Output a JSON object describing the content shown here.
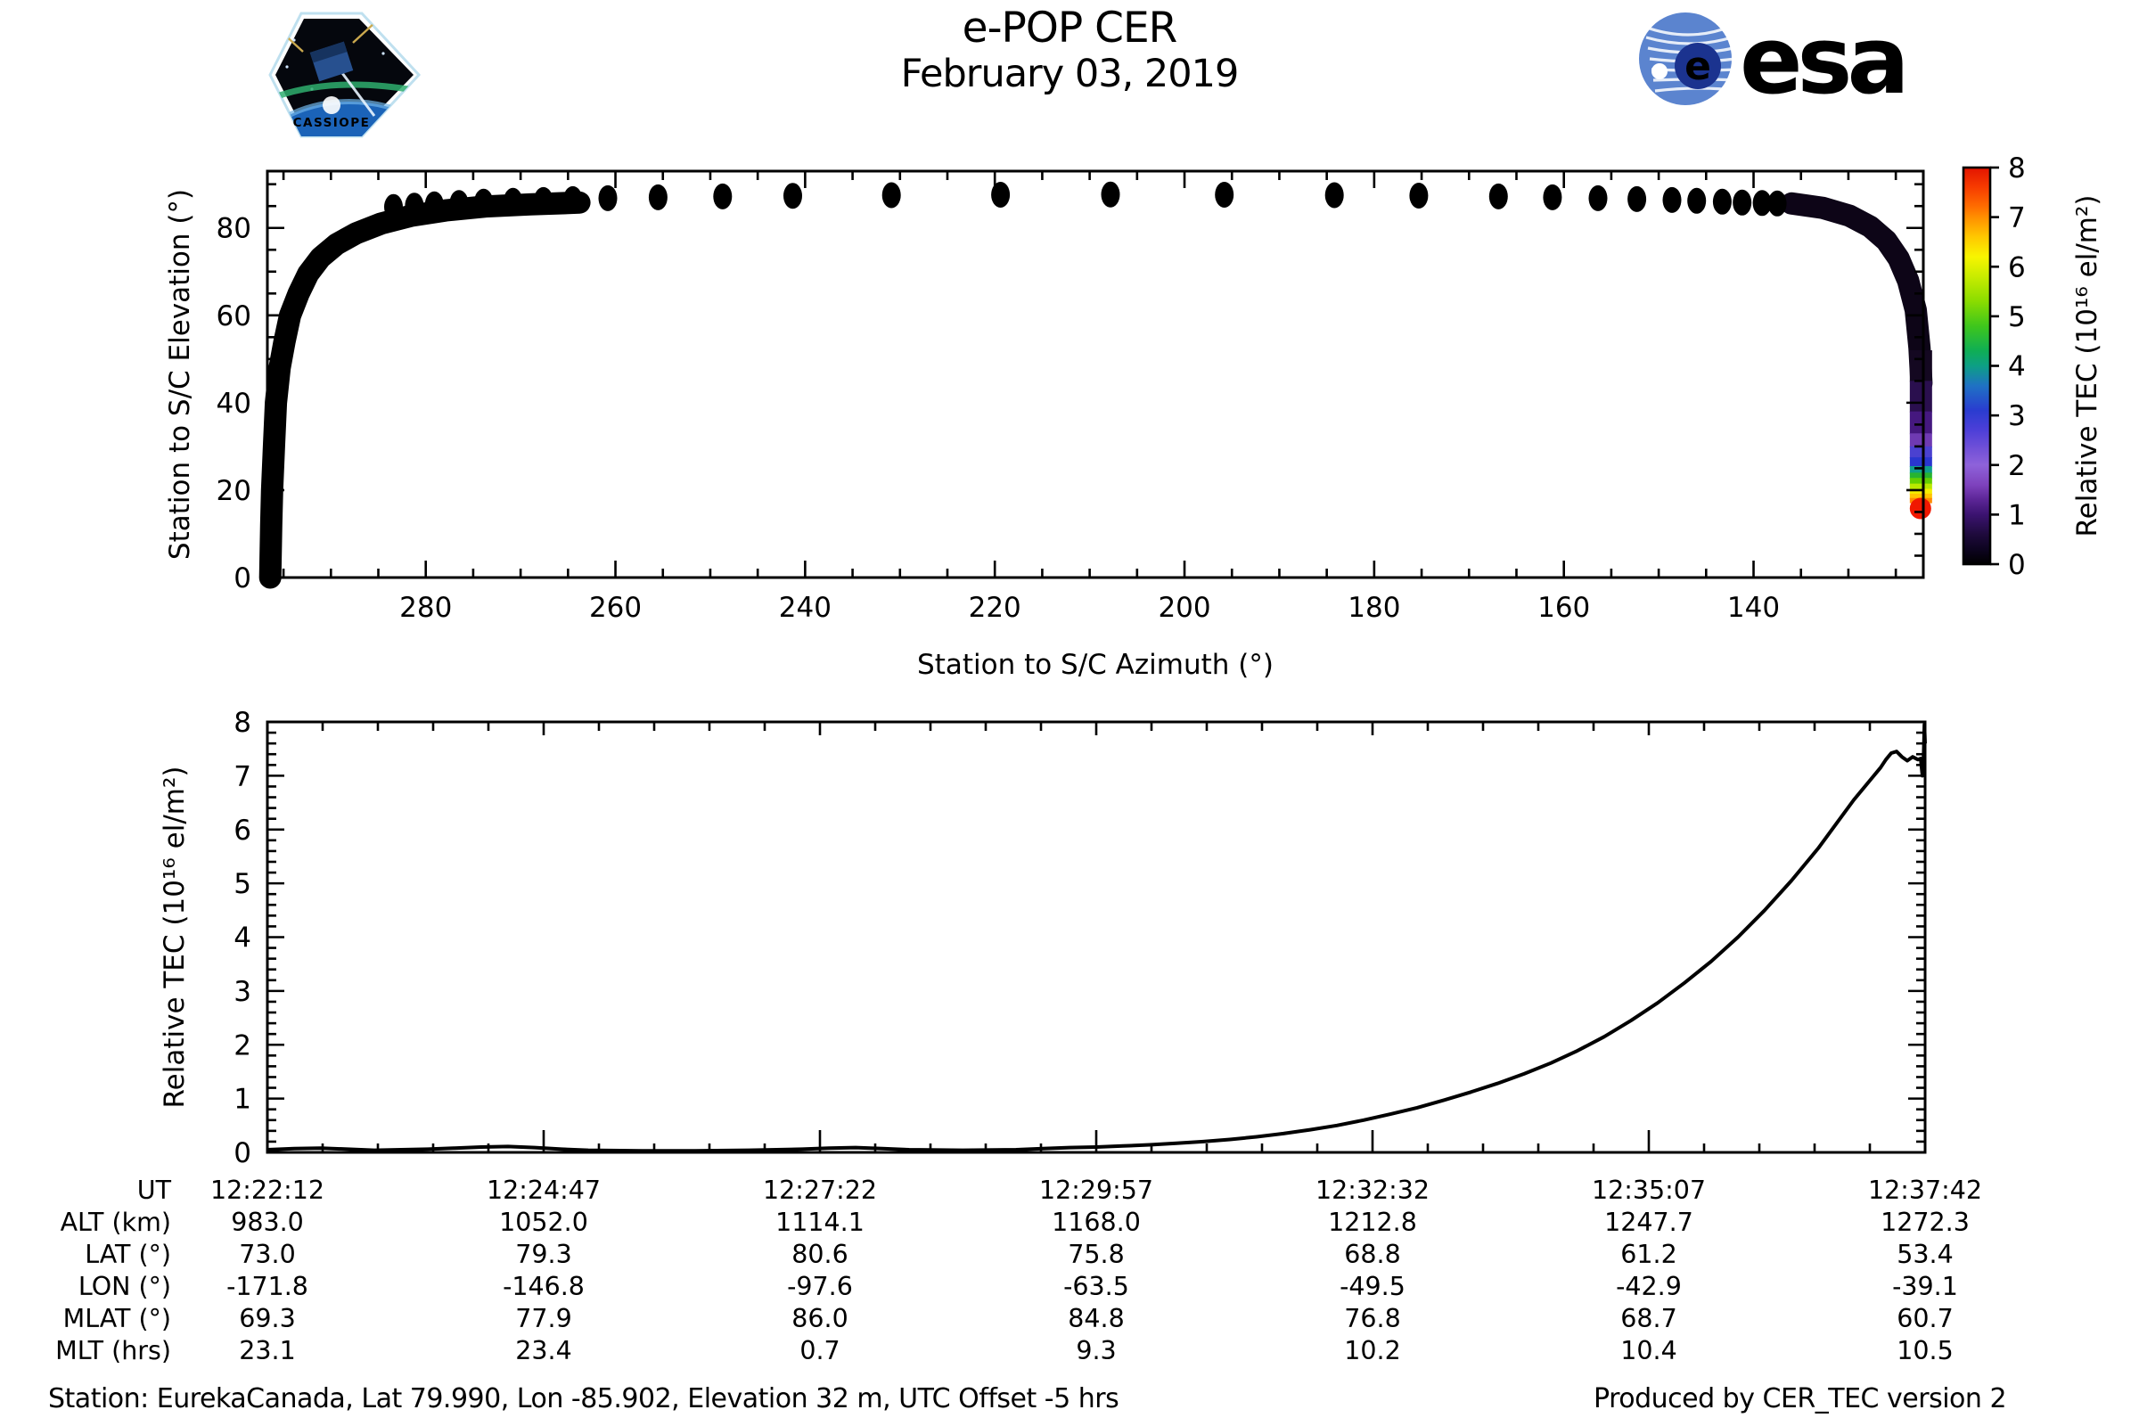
{
  "title": "e-POP CER",
  "subtitle": "February 03, 2019",
  "footer": {
    "left": "Station: EurekaCanada, Lat 79.990, Lon -85.902, Elevation 32 m, UTC Offset -5 hrs",
    "right": "Produced by CER_TEC version 2"
  },
  "logos": {
    "cassiope_text": "CASSIOPE",
    "esa_text": "esa",
    "esa_e": "e",
    "esa_blue": "#1b338f",
    "esa_globe_blue": "#5b84cf",
    "cassiope_cyan": "#3ec6ee"
  },
  "colorbar": {
    "label": "Relative TEC (10¹⁶ el/m²)",
    "min": 0,
    "max": 8,
    "ticks": [
      0,
      1,
      2,
      3,
      4,
      5,
      6,
      7,
      8
    ],
    "stops": [
      {
        "v": 8.0,
        "color": "#e31400"
      },
      {
        "v": 7.6,
        "color": "#f73c00"
      },
      {
        "v": 7.2,
        "color": "#ff6f00"
      },
      {
        "v": 7.0,
        "color": "#ff8f00"
      },
      {
        "v": 6.6,
        "color": "#ffc800"
      },
      {
        "v": 6.2,
        "color": "#f8f500"
      },
      {
        "v": 5.8,
        "color": "#c8ec00"
      },
      {
        "v": 5.3,
        "color": "#8adc00"
      },
      {
        "v": 4.8,
        "color": "#3ec61c"
      },
      {
        "v": 4.3,
        "color": "#0fae55"
      },
      {
        "v": 4.0,
        "color": "#0d9f85"
      },
      {
        "v": 3.6,
        "color": "#1f72c4"
      },
      {
        "v": 3.1,
        "color": "#2a3cd0"
      },
      {
        "v": 2.7,
        "color": "#4d3fd8"
      },
      {
        "v": 2.3,
        "color": "#7452d8"
      },
      {
        "v": 2.0,
        "color": "#8e62da"
      },
      {
        "v": 1.6,
        "color": "#7e42bd"
      },
      {
        "v": 1.3,
        "color": "#5c2596"
      },
      {
        "v": 1.0,
        "color": "#3b1370"
      },
      {
        "v": 0.6,
        "color": "#1e0a3c"
      },
      {
        "v": 0.3,
        "color": "#0d0420"
      },
      {
        "v": 0.0,
        "color": "#000000"
      }
    ]
  },
  "chart_data": [
    {
      "id": "elevation-vs-azimuth",
      "type": "scatter",
      "xlabel": "Station to S/C Azimuth (°)",
      "ylabel": "Station to S/C Elevation (°)",
      "xlim": [
        296.7,
        122.1
      ],
      "x_reversed": true,
      "ylim": [
        0,
        93
      ],
      "xticks": [
        280,
        260,
        240,
        220,
        200,
        180,
        160,
        140
      ],
      "yticks": [
        0,
        20,
        40,
        60,
        80
      ],
      "x_minor_step": 5,
      "y_minor_step": 5,
      "marker_color": "#000000",
      "rise_track": [
        [
          296.4,
          0
        ],
        [
          296.3,
          12
        ],
        [
          296.2,
          20
        ],
        [
          296.0,
          30
        ],
        [
          295.8,
          40
        ],
        [
          295.4,
          48
        ],
        [
          294.9,
          54
        ],
        [
          294.3,
          60
        ],
        [
          293.4,
          65
        ],
        [
          292.4,
          69.5
        ],
        [
          291.1,
          73.2
        ],
        [
          289.4,
          76.3
        ],
        [
          287.3,
          78.8
        ],
        [
          284.7,
          81.0
        ],
        [
          281.5,
          82.8
        ],
        [
          277.9,
          84.0
        ],
        [
          273.7,
          84.9
        ],
        [
          269.0,
          85.4
        ],
        [
          263.8,
          85.8
        ]
      ],
      "overhead_dots": [
        [
          283.4,
          84.8
        ],
        [
          281.2,
          85.1
        ],
        [
          279.1,
          85.4
        ],
        [
          276.5,
          85.7
        ],
        [
          273.9,
          86.0
        ],
        [
          270.8,
          86.2
        ],
        [
          267.6,
          86.4
        ],
        [
          264.5,
          86.6
        ],
        [
          260.8,
          86.8
        ],
        [
          255.5,
          87.0
        ],
        [
          248.7,
          87.2
        ],
        [
          241.3,
          87.35
        ],
        [
          230.9,
          87.5
        ],
        [
          219.4,
          87.6
        ],
        [
          207.8,
          87.65
        ],
        [
          195.8,
          87.6
        ],
        [
          184.2,
          87.5
        ],
        [
          175.3,
          87.4
        ],
        [
          166.9,
          87.2
        ],
        [
          161.2,
          87.0
        ],
        [
          156.4,
          86.8
        ],
        [
          152.3,
          86.6
        ],
        [
          148.6,
          86.4
        ],
        [
          146.0,
          86.2
        ],
        [
          143.3,
          86.0
        ],
        [
          141.2,
          85.8
        ],
        [
          139.1,
          85.7
        ],
        [
          137.5,
          85.6
        ]
      ],
      "set_track": [
        [
          136.0,
          85.6
        ],
        [
          132.7,
          84.6
        ],
        [
          129.9,
          82.8
        ],
        [
          127.7,
          80.3
        ],
        [
          126.0,
          77.1
        ],
        [
          124.7,
          73.0
        ],
        [
          123.7,
          67.9
        ],
        [
          122.9,
          61.2
        ],
        [
          122.5,
          52.6
        ],
        [
          122.3,
          44.5
        ]
      ],
      "set_track_color": "#0d0517",
      "tec_tail": {
        "az": 122.35,
        "segments": [
          {
            "from": 52.0,
            "to": 45.0,
            "color": "#140821"
          },
          {
            "from": 45.0,
            "to": 38.0,
            "color": "#2a0f4e"
          },
          {
            "from": 38.0,
            "to": 33.0,
            "color": "#45187f"
          },
          {
            "from": 33.0,
            "to": 30.0,
            "color": "#6f3ab2"
          },
          {
            "from": 30.0,
            "to": 27.5,
            "color": "#4b41d0"
          },
          {
            "from": 27.5,
            "to": 25.5,
            "color": "#2936cf"
          },
          {
            "from": 25.5,
            "to": 24.0,
            "color": "#0f9e8c"
          },
          {
            "from": 24.0,
            "to": 22.8,
            "color": "#27b431"
          },
          {
            "from": 22.8,
            "to": 21.5,
            "color": "#63cf00"
          },
          {
            "from": 21.5,
            "to": 20.3,
            "color": "#b8e800"
          },
          {
            "from": 20.3,
            "to": 19.2,
            "color": "#f5ee00"
          },
          {
            "from": 19.2,
            "to": 18.2,
            "color": "#ffc400"
          },
          {
            "from": 18.2,
            "to": 17.2,
            "color": "#ff8a00"
          }
        ]
      },
      "end_marker": {
        "az": 122.4,
        "el": 15.8,
        "color": "#f01800"
      }
    },
    {
      "id": "relative-tec-vs-time",
      "type": "line",
      "ylabel": "Relative TEC (10¹⁶ el/m²)",
      "ylim": [
        0,
        8
      ],
      "yticks": [
        0,
        1,
        2,
        3,
        4,
        5,
        6,
        7,
        8
      ],
      "y_minor_step": 0.2,
      "x_span_seconds": 930,
      "x_major_ticks_s": [
        0,
        155,
        310,
        465,
        620,
        775,
        930
      ],
      "x_minor_step_s": 31,
      "line_color": "#000000",
      "points": [
        [
          0,
          0.05
        ],
        [
          15,
          0.07
        ],
        [
          30,
          0.08
        ],
        [
          45,
          0.06
        ],
        [
          60,
          0.04
        ],
        [
          75,
          0.05
        ],
        [
          90,
          0.06
        ],
        [
          105,
          0.08
        ],
        [
          120,
          0.1
        ],
        [
          135,
          0.11
        ],
        [
          150,
          0.09
        ],
        [
          165,
          0.06
        ],
        [
          180,
          0.04
        ],
        [
          210,
          0.03
        ],
        [
          240,
          0.03
        ],
        [
          270,
          0.04
        ],
        [
          300,
          0.06
        ],
        [
          315,
          0.08
        ],
        [
          330,
          0.09
        ],
        [
          345,
          0.07
        ],
        [
          360,
          0.05
        ],
        [
          390,
          0.04
        ],
        [
          420,
          0.05
        ],
        [
          435,
          0.07
        ],
        [
          450,
          0.09
        ],
        [
          465,
          0.1
        ],
        [
          480,
          0.12
        ],
        [
          495,
          0.14
        ],
        [
          510,
          0.17
        ],
        [
          525,
          0.2
        ],
        [
          540,
          0.24
        ],
        [
          555,
          0.29
        ],
        [
          570,
          0.35
        ],
        [
          585,
          0.42
        ],
        [
          600,
          0.5
        ],
        [
          615,
          0.6
        ],
        [
          630,
          0.71
        ],
        [
          645,
          0.83
        ],
        [
          660,
          0.97
        ],
        [
          675,
          1.12
        ],
        [
          690,
          1.28
        ],
        [
          705,
          1.46
        ],
        [
          720,
          1.66
        ],
        [
          735,
          1.89
        ],
        [
          750,
          2.15
        ],
        [
          765,
          2.45
        ],
        [
          780,
          2.78
        ],
        [
          795,
          3.15
        ],
        [
          810,
          3.55
        ],
        [
          825,
          4.0
        ],
        [
          840,
          4.5
        ],
        [
          855,
          5.05
        ],
        [
          870,
          5.65
        ],
        [
          880,
          6.1
        ],
        [
          890,
          6.55
        ],
        [
          900,
          6.95
        ],
        [
          905,
          7.15
        ],
        [
          908,
          7.3
        ],
        [
          911,
          7.42
        ],
        [
          914,
          7.45
        ],
        [
          917,
          7.35
        ],
        [
          920,
          7.28
        ],
        [
          923,
          7.35
        ],
        [
          926,
          7.3
        ],
        [
          927.5,
          7.32
        ],
        [
          928.5,
          7.0
        ],
        [
          929.2,
          7.4
        ],
        [
          929.6,
          7.95
        ],
        [
          930,
          7.6
        ]
      ]
    }
  ],
  "bottom_axis_table": {
    "row_labels": [
      "UT",
      "ALT (km)",
      "LAT (°)",
      "LON (°)",
      "MLAT (°)",
      "MLT (hrs)"
    ],
    "columns": [
      [
        "12:22:12",
        "983.0",
        "73.0",
        "-171.8",
        "69.3",
        "23.1"
      ],
      [
        "12:24:47",
        "1052.0",
        "79.3",
        "-146.8",
        "77.9",
        "23.4"
      ],
      [
        "12:27:22",
        "1114.1",
        "80.6",
        "-97.6",
        "86.0",
        "0.7"
      ],
      [
        "12:29:57",
        "1168.0",
        "75.8",
        "-63.5",
        "84.8",
        "9.3"
      ],
      [
        "12:32:32",
        "1212.8",
        "68.8",
        "-49.5",
        "76.8",
        "10.2"
      ],
      [
        "12:35:07",
        "1247.7",
        "61.2",
        "-42.9",
        "68.7",
        "10.4"
      ],
      [
        "12:37:42",
        "1272.3",
        "53.4",
        "-39.1",
        "60.7",
        "10.5"
      ]
    ]
  }
}
